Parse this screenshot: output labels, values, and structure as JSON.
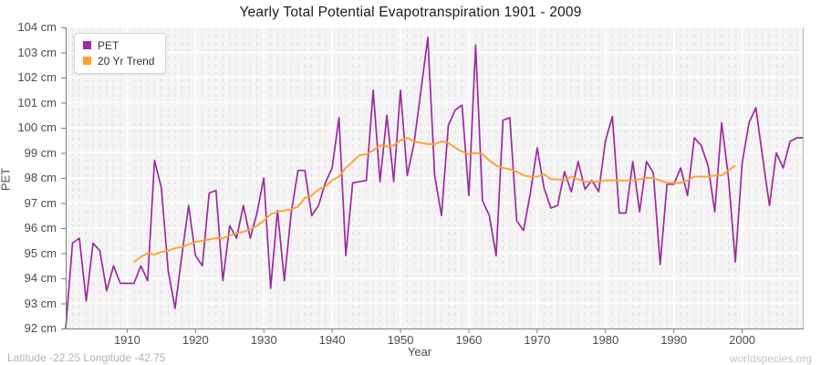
{
  "title": "Yearly Total Potential Evapotranspiration 1901 - 2009",
  "legend": [
    {
      "label": "PET",
      "color": "#9c2aa0"
    },
    {
      "label": "20 Yr Trend",
      "color": "#ffa02e"
    }
  ],
  "y_axis": {
    "label": "PET",
    "unit": "cm",
    "ticks": [
      "92 cm",
      "93 cm",
      "94 cm",
      "95 cm",
      "96 cm",
      "97 cm",
      "98 cm",
      "99 cm",
      "100 cm",
      "101 cm",
      "102 cm",
      "103 cm",
      "104 cm"
    ]
  },
  "x_axis": {
    "label": "Year",
    "ticks": [
      "1910",
      "1920",
      "1930",
      "1940",
      "1950",
      "1960",
      "1970",
      "1980",
      "1990",
      "2000"
    ]
  },
  "footer": {
    "left": "Latitude -22.25 Longitude -42.75",
    "right": "worldspecies.org"
  },
  "chart_data": {
    "type": "line",
    "title": "Yearly Total Potential Evapotranspiration 1901 - 2009",
    "xlabel": "Year",
    "ylabel": "PET",
    "y_unit": "cm",
    "xlim": [
      1901,
      2009
    ],
    "ylim": [
      92,
      104
    ],
    "grid": true,
    "legend_position": "top-left",
    "plot_background": "#f4f4f4",
    "gridline_major_color": "#ffffff",
    "gridline_minor_color": "#dedede",
    "series": [
      {
        "name": "PET",
        "color": "#9c2aa0",
        "x_start": 1901,
        "step": 1,
        "values": [
          92.0,
          95.4,
          95.6,
          93.1,
          95.4,
          95.1,
          93.5,
          94.5,
          93.8,
          93.8,
          93.8,
          94.5,
          93.9,
          98.7,
          97.6,
          94.3,
          92.8,
          94.9,
          96.9,
          94.9,
          94.5,
          97.4,
          97.5,
          93.9,
          96.1,
          95.6,
          96.9,
          95.6,
          96.6,
          98.0,
          93.6,
          96.7,
          93.9,
          96.6,
          98.3,
          98.3,
          96.5,
          96.9,
          97.8,
          98.4,
          100.4,
          94.9,
          97.8,
          97.85,
          97.9,
          101.5,
          97.85,
          100.5,
          97.85,
          101.5,
          98.1,
          99.4,
          101.5,
          103.6,
          98.1,
          96.5,
          100.1,
          100.7,
          100.9,
          97.3,
          103.3,
          97.1,
          96.5,
          94.9,
          100.3,
          100.4,
          96.3,
          95.9,
          97.4,
          99.2,
          97.6,
          96.8,
          96.9,
          98.25,
          97.45,
          98.65,
          97.55,
          97.9,
          97.45,
          99.5,
          100.45,
          96.6,
          96.6,
          98.65,
          96.65,
          98.65,
          98.2,
          94.55,
          97.75,
          97.75,
          98.4,
          97.3,
          99.6,
          99.3,
          98.5,
          96.65,
          100.2,
          98.0,
          94.65,
          98.6,
          100.2,
          100.8,
          98.8,
          96.9,
          99.0,
          98.4,
          99.45,
          99.6,
          99.6
        ]
      },
      {
        "name": "20 Yr Trend",
        "color": "#ffa02e",
        "x_start": 1911,
        "step": 1,
        "values": [
          94.65,
          94.85,
          95.0,
          94.95,
          95.05,
          95.1,
          95.2,
          95.25,
          95.35,
          95.45,
          95.5,
          95.55,
          95.6,
          95.6,
          95.7,
          95.8,
          95.85,
          95.95,
          96.1,
          96.3,
          96.55,
          96.65,
          96.7,
          96.75,
          96.85,
          97.2,
          97.3,
          97.55,
          97.65,
          97.9,
          98.05,
          98.4,
          98.65,
          98.9,
          98.95,
          99.1,
          99.3,
          99.25,
          99.3,
          99.5,
          99.6,
          99.45,
          99.4,
          99.35,
          99.35,
          99.45,
          99.4,
          99.2,
          99.05,
          98.95,
          99.0,
          98.95,
          98.7,
          98.5,
          98.4,
          98.35,
          98.25,
          98.1,
          98.05,
          98.05,
          98.15,
          97.95,
          97.95,
          97.9,
          98.05,
          97.95,
          97.85,
          97.85,
          97.85,
          97.9,
          97.9,
          97.9,
          97.9,
          97.9,
          97.95,
          98.0,
          98.0,
          97.9,
          97.8,
          97.8,
          97.8,
          97.9,
          98.05,
          98.05,
          98.05,
          98.1,
          98.1,
          98.3,
          98.5
        ]
      }
    ]
  }
}
